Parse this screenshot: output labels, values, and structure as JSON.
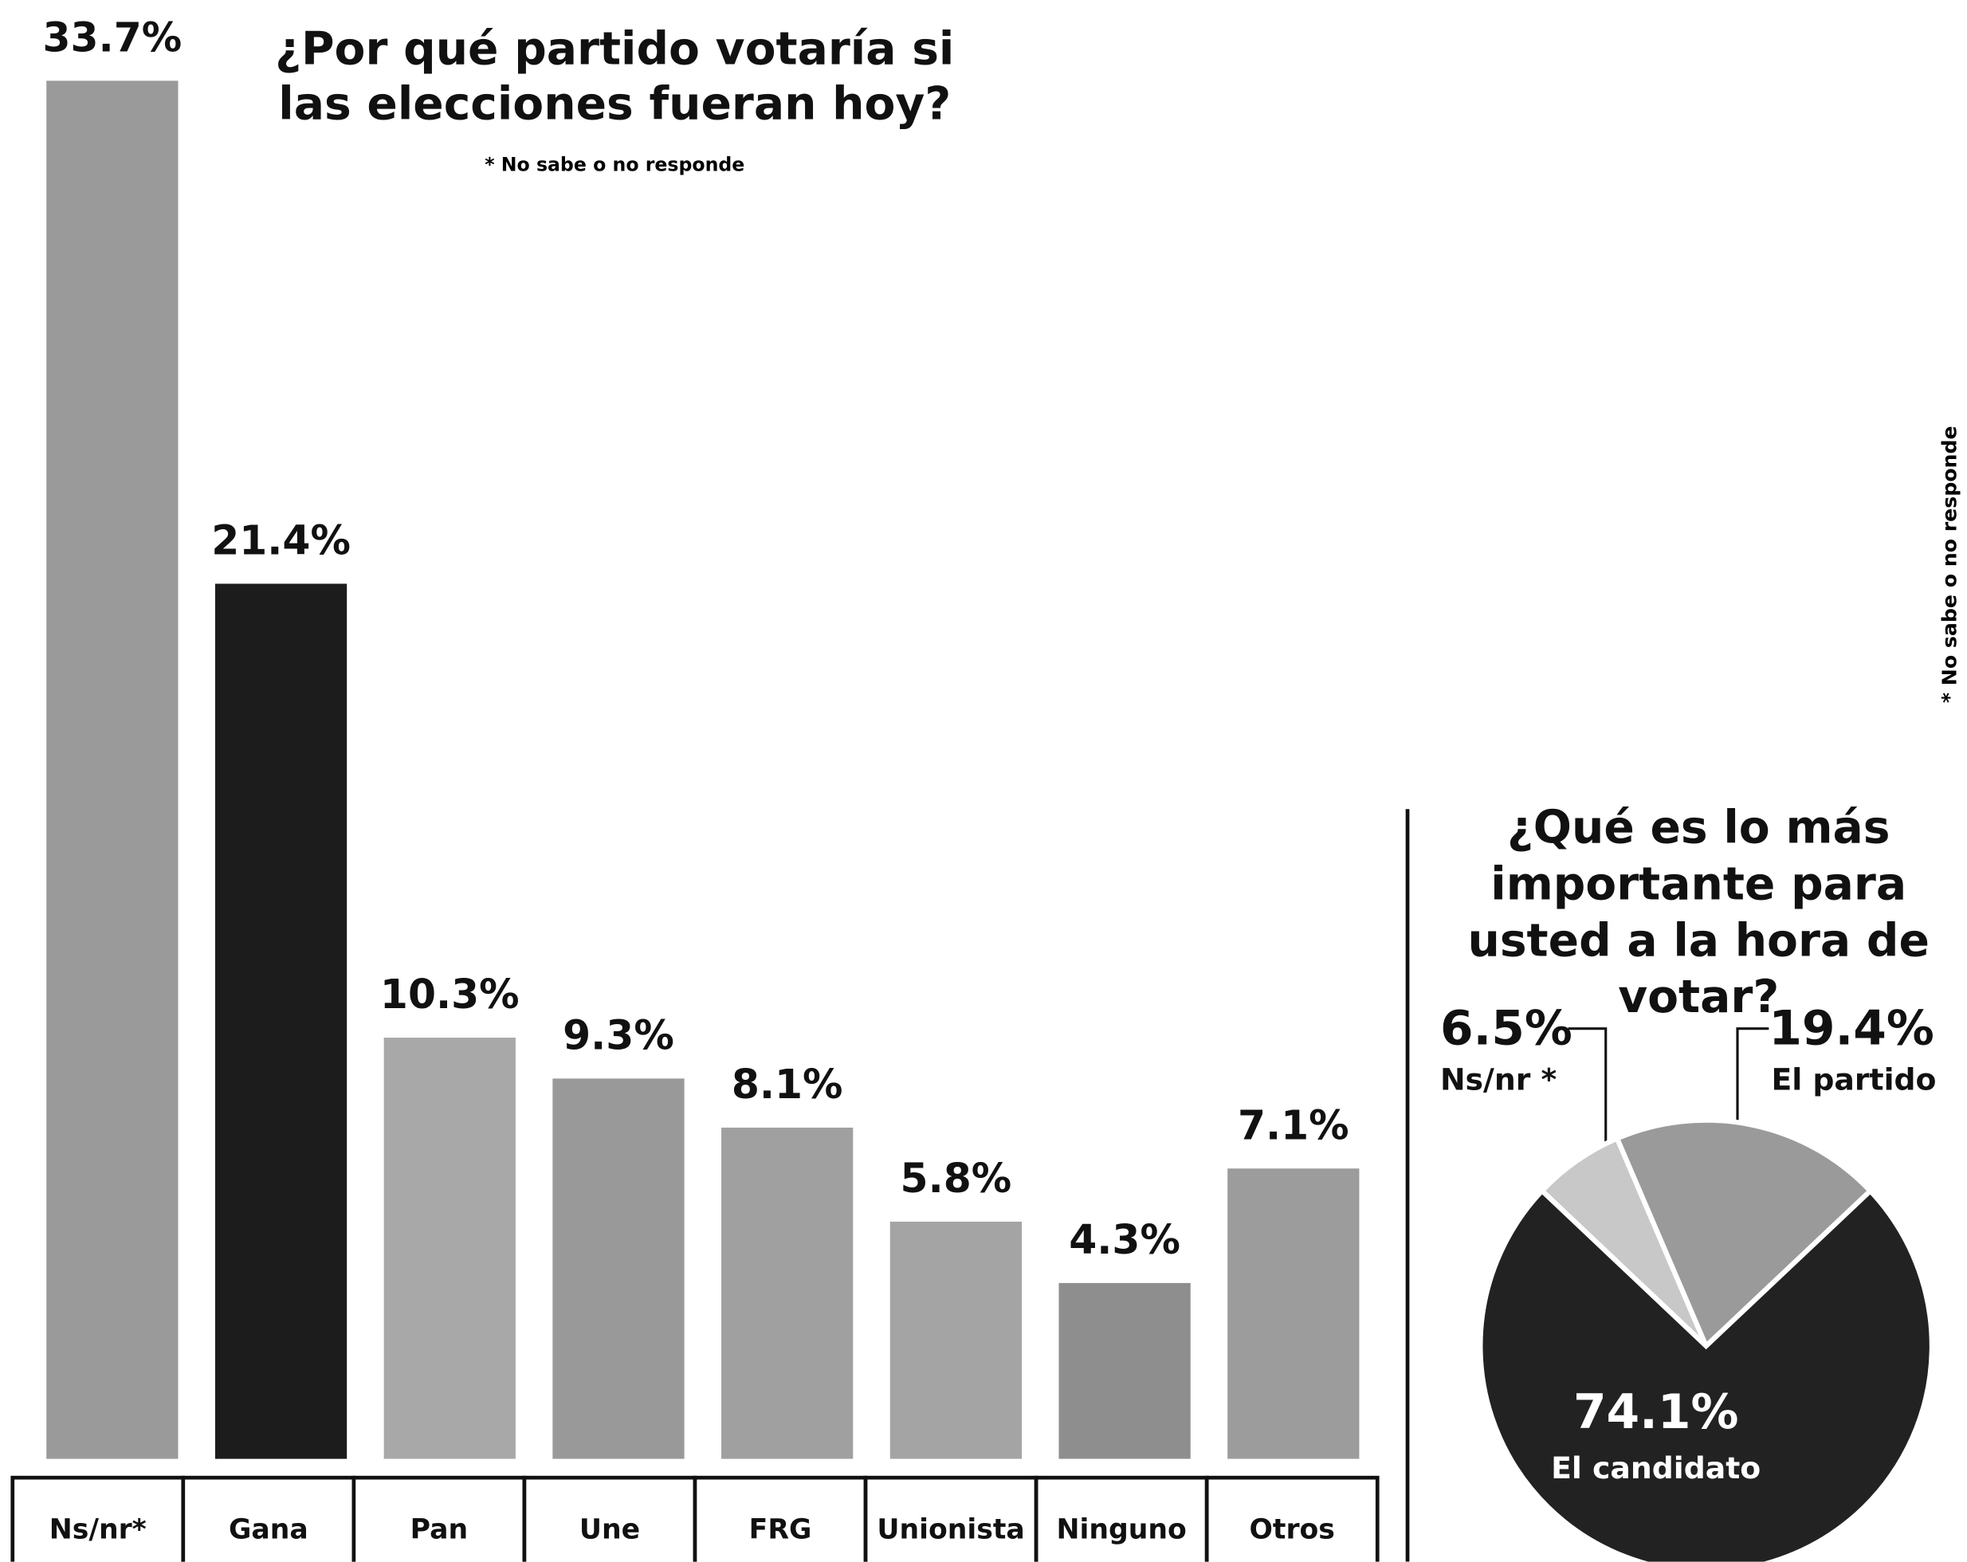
{
  "chart_data": [
    {
      "type": "bar",
      "title": "¿Por qué partido votaría si las elecciones fueran hoy?",
      "note": "* No sabe o no responde",
      "categories": [
        "Ns/nr*",
        "Gana",
        "Pan",
        "Une",
        "FRG",
        "Unionista",
        "Ninguno",
        "Otros"
      ],
      "values": [
        33.7,
        21.4,
        10.3,
        9.3,
        8.1,
        5.8,
        4.3,
        7.1
      ],
      "value_labels": [
        "33.7%",
        "21.4%",
        "10.3%",
        "9.3%",
        "8.1%",
        "5.8%",
        "4.3%",
        "7.1%"
      ],
      "colors": [
        "#9a9a9a",
        "#1c1c1c",
        "#a8a8a8",
        "#999999",
        "#a0a0a0",
        "#a4a4a4",
        "#8e8e8e",
        "#9c9c9c"
      ]
    },
    {
      "type": "pie",
      "title": "¿Qué es lo más importante para usted a la hora de votar?",
      "note": "* No sabe o no responde",
      "categories": [
        "Ns/nr *",
        "El partido",
        "El candidato"
      ],
      "values": [
        6.5,
        19.4,
        74.1
      ],
      "value_labels": [
        "6.5%",
        "19.4%",
        "74.1%"
      ],
      "colors": [
        "#c8c8c8",
        "#9a9a9a",
        "#222222"
      ]
    }
  ]
}
